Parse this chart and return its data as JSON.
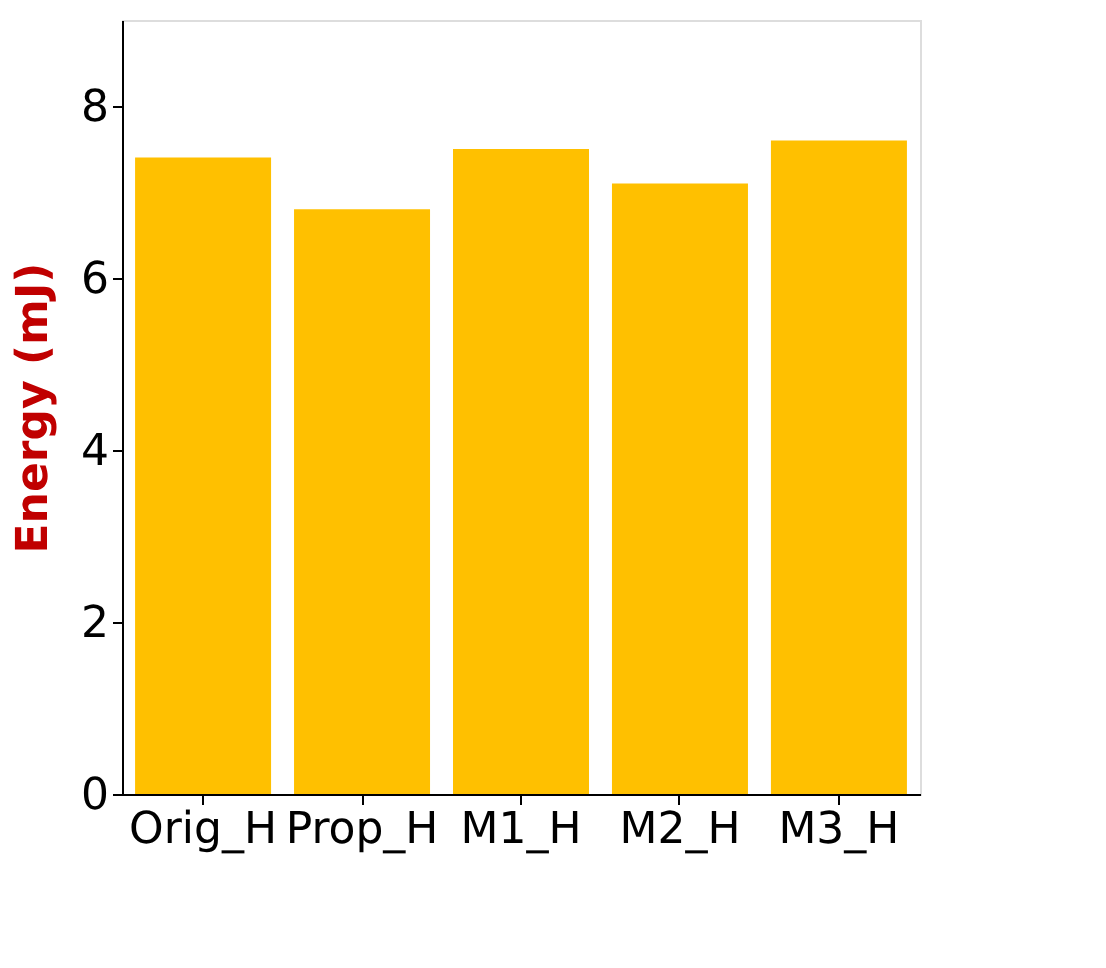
{
  "chart_data": {
    "type": "bar",
    "ylabel": "Energy (mJ)",
    "categories": [
      "Orig_H",
      "Prop_H",
      "M1_H",
      "M2_H",
      "M3_H"
    ],
    "values": [
      7.4,
      6.8,
      7.5,
      7.1,
      7.6
    ],
    "color": "#ffc000",
    "ylim": [
      0,
      9
    ],
    "yticks": [
      0,
      2,
      4,
      6,
      8
    ],
    "grid": false
  }
}
